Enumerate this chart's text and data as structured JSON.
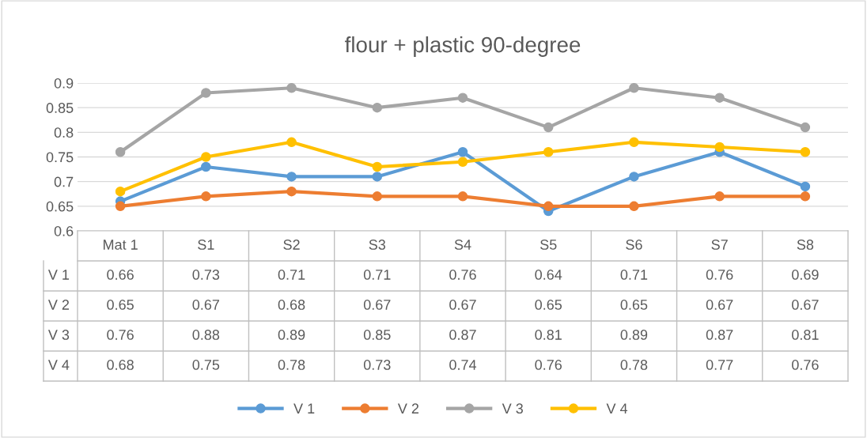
{
  "chart_data": {
    "type": "line",
    "title": "flour + plastic 90-degree",
    "categories": [
      "Mat 1",
      "S1",
      "S2",
      "S3",
      "S4",
      "S5",
      "S6",
      "S7",
      "S8"
    ],
    "series": [
      {
        "name": "V 1",
        "color": "#5b9bd5",
        "values": [
          0.66,
          0.73,
          0.71,
          0.71,
          0.76,
          0.64,
          0.71,
          0.76,
          0.69
        ]
      },
      {
        "name": "V 2",
        "color": "#ed7d31",
        "values": [
          0.65,
          0.67,
          0.68,
          0.67,
          0.67,
          0.65,
          0.65,
          0.67,
          0.67
        ]
      },
      {
        "name": "V 3",
        "color": "#a5a5a5",
        "values": [
          0.76,
          0.88,
          0.89,
          0.85,
          0.87,
          0.81,
          0.89,
          0.87,
          0.81
        ]
      },
      {
        "name": "V 4",
        "color": "#ffc000",
        "values": [
          0.68,
          0.75,
          0.78,
          0.73,
          0.74,
          0.76,
          0.78,
          0.77,
          0.76
        ]
      }
    ],
    "ylim": [
      0.6,
      0.9
    ],
    "yticks": [
      0.6,
      0.65,
      0.7,
      0.75,
      0.8,
      0.85,
      0.9
    ],
    "grid": "y",
    "legend": "bottom",
    "marker": "circle",
    "line_style": "solid",
    "data_labels": true
  }
}
